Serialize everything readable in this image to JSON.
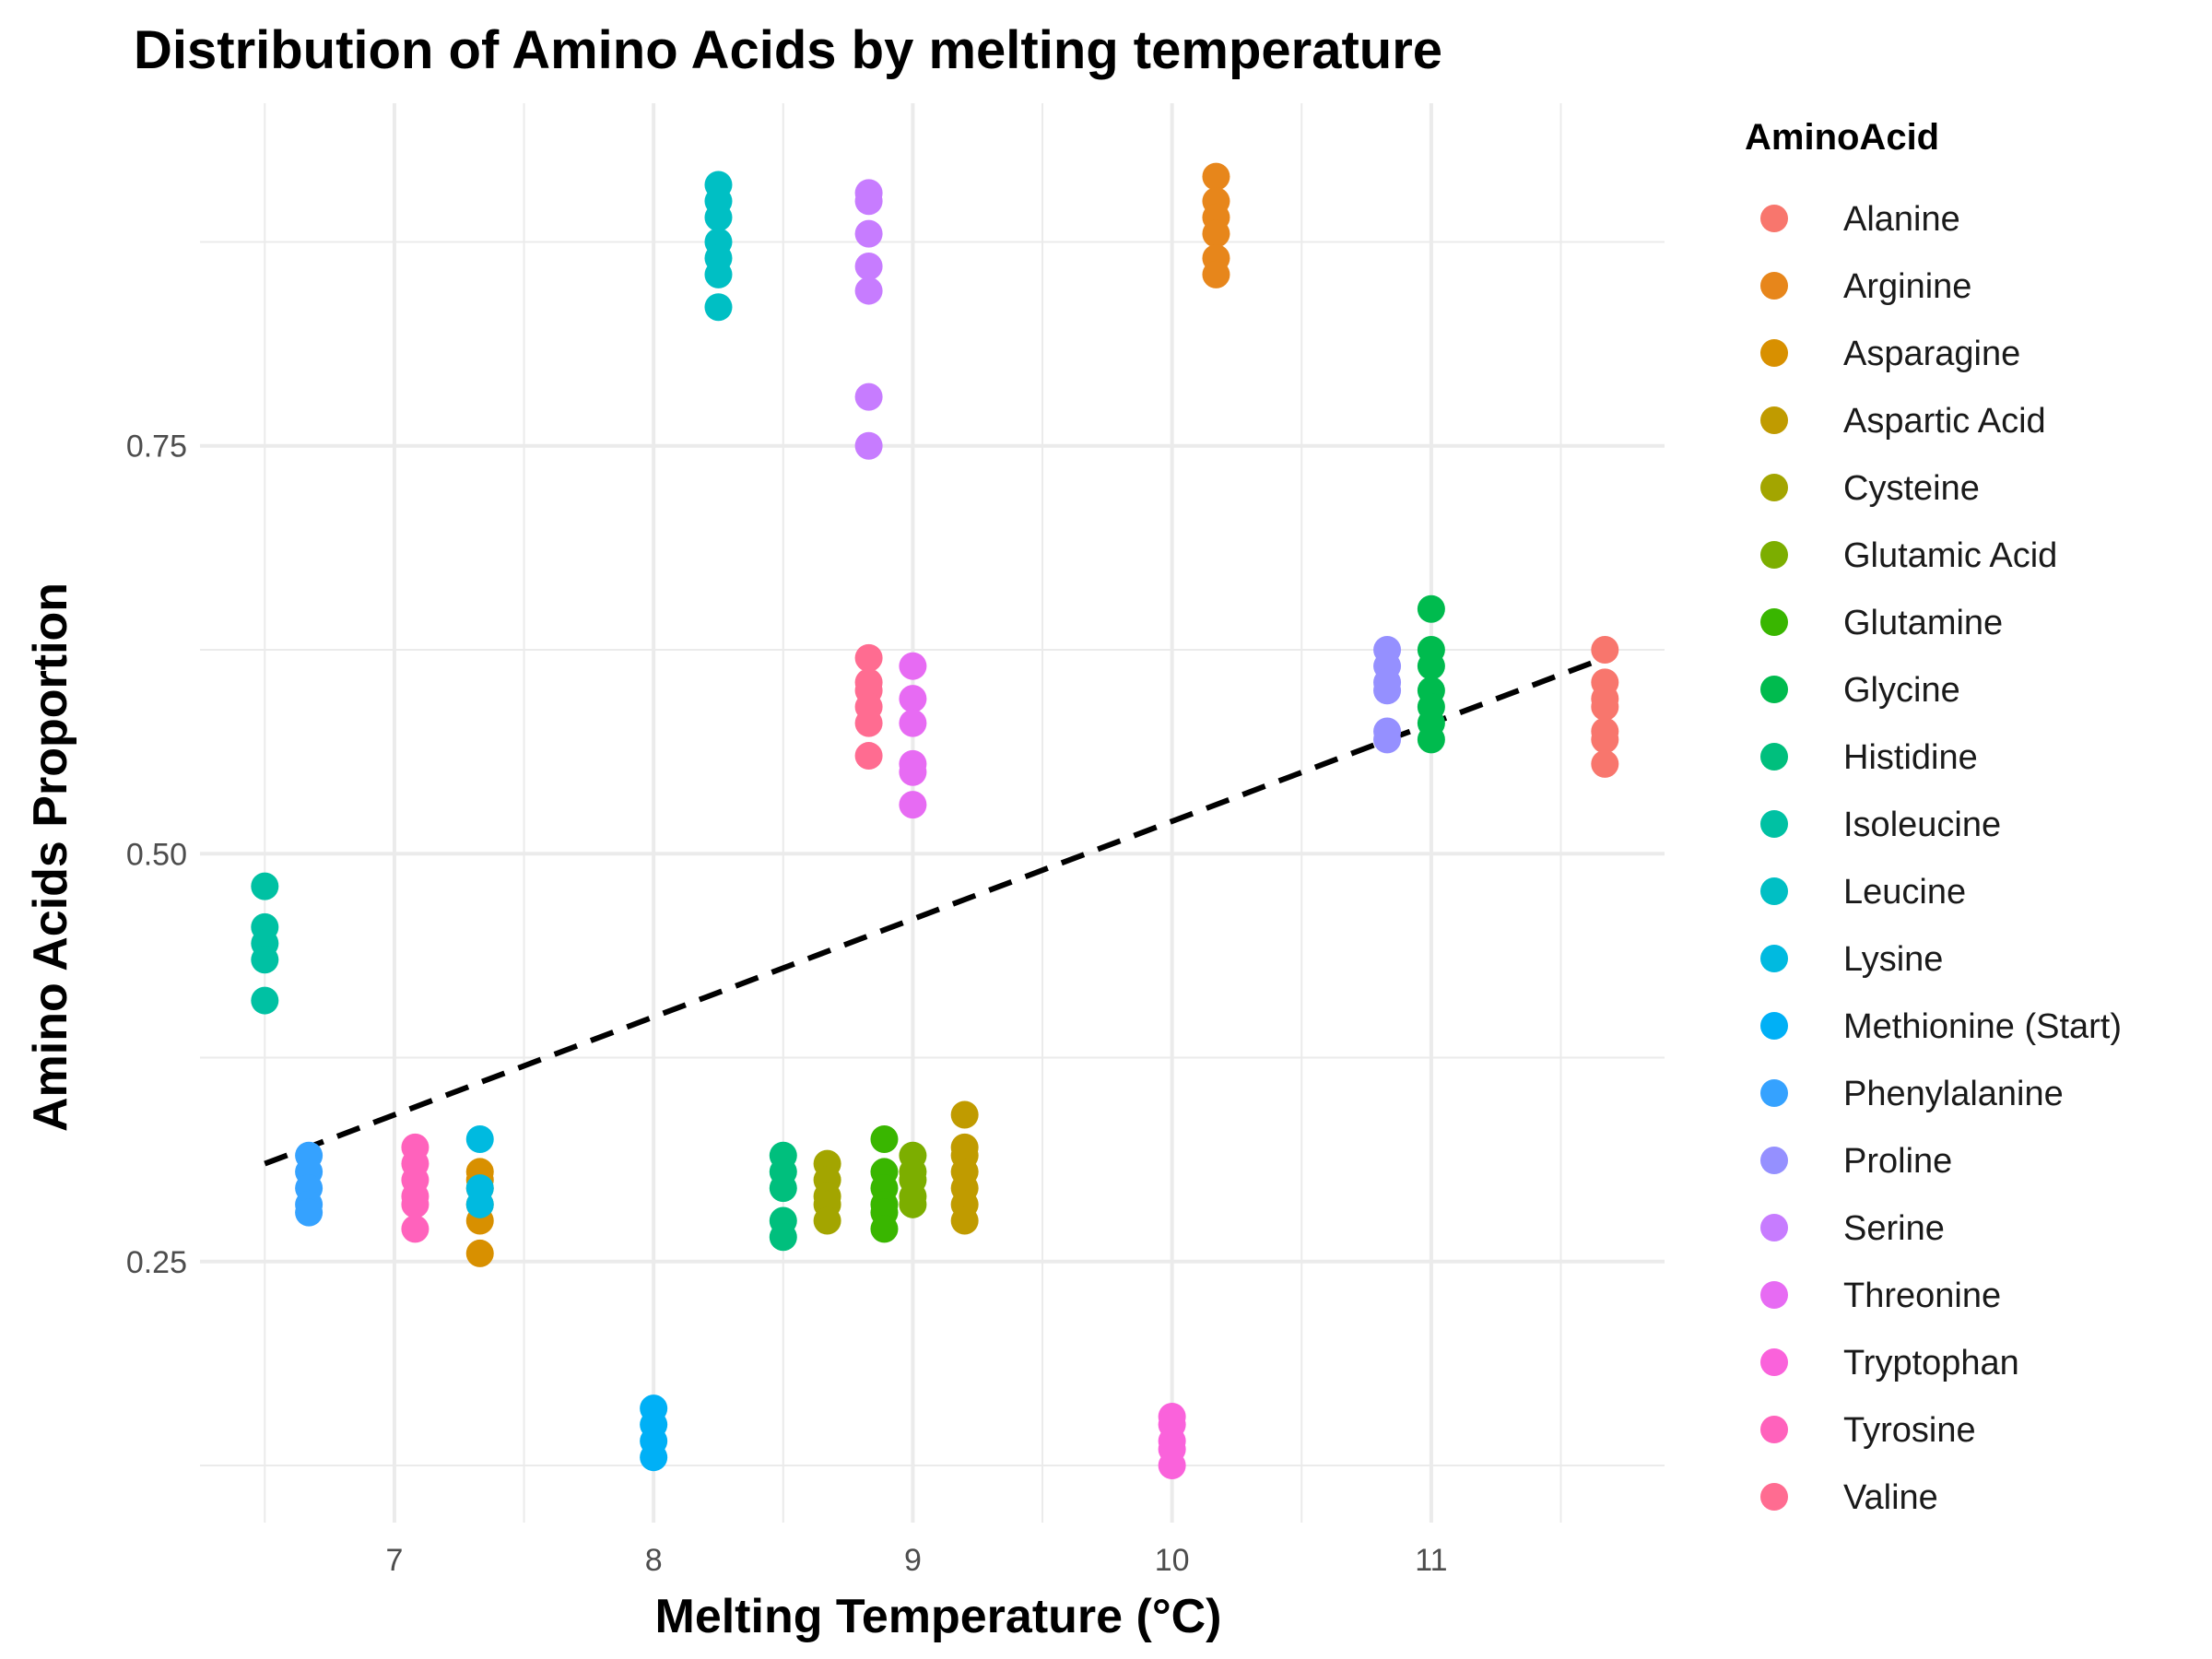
{
  "chart_data": {
    "type": "scatter",
    "title": "Distribution of Amino Acids by melting temperature",
    "xlabel": "Melting Temperature (°C)",
    "ylabel": "Amino Acids Proportion",
    "xlim": [
      6.25,
      11.9
    ],
    "ylim": [
      0.09,
      0.96
    ],
    "x_ticks": [
      7,
      8,
      9,
      10,
      11
    ],
    "x_tick_labels": [
      "7",
      "8",
      "9",
      "10",
      "11"
    ],
    "y_ticks": [
      0.25,
      0.5,
      0.75
    ],
    "y_tick_labels": [
      "0.25",
      "0.50",
      "0.75"
    ],
    "grid": true,
    "legend": {
      "title": "AminoAcid",
      "position": "right"
    },
    "trend_line": {
      "style": "dashed",
      "color": "#000000",
      "x": [
        6.5,
        11.67
      ],
      "y": [
        0.31,
        0.62
      ]
    },
    "series": [
      {
        "name": "Alanine",
        "color": "#F8766D",
        "x": 11.67,
        "y": [
          0.625,
          0.605,
          0.595,
          0.59,
          0.575,
          0.57,
          0.555
        ]
      },
      {
        "name": "Arginine",
        "color": "#E7861B",
        "x": 10.17,
        "y": [
          0.915,
          0.9,
          0.89,
          0.88,
          0.865,
          0.855
        ]
      },
      {
        "name": "Asparagine",
        "color": "#D89000",
        "x": 7.33,
        "y": [
          0.305,
          0.3,
          0.295,
          0.285,
          0.275,
          0.255
        ]
      },
      {
        "name": "Aspartic Acid",
        "color": "#C09B00",
        "x": 9.2,
        "y": [
          0.34,
          0.32,
          0.315,
          0.305,
          0.295,
          0.285,
          0.275
        ]
      },
      {
        "name": "Cysteine",
        "color": "#A3A500",
        "x": 8.67,
        "y": [
          0.31,
          0.3,
          0.29,
          0.285,
          0.275
        ]
      },
      {
        "name": "Glutamic Acid",
        "color": "#7CAE00",
        "x": 9.0,
        "y": [
          0.315,
          0.305,
          0.3,
          0.29,
          0.285
        ]
      },
      {
        "name": "Glutamine",
        "color": "#39B600",
        "x": 8.89,
        "y": [
          0.325,
          0.305,
          0.295,
          0.285,
          0.28,
          0.27
        ]
      },
      {
        "name": "Glycine",
        "color": "#00BB4E",
        "x": 11.0,
        "y": [
          0.65,
          0.625,
          0.615,
          0.6,
          0.59,
          0.58,
          0.57
        ]
      },
      {
        "name": "Histidine",
        "color": "#00BF7D",
        "x": 8.5,
        "y": [
          0.315,
          0.305,
          0.295,
          0.275,
          0.265
        ]
      },
      {
        "name": "Isoleucine",
        "color": "#00C1A3",
        "x": 6.5,
        "y": [
          0.48,
          0.455,
          0.445,
          0.435,
          0.41
        ]
      },
      {
        "name": "Leucine",
        "color": "#00BFC4",
        "x": 8.25,
        "y": [
          0.91,
          0.9,
          0.89,
          0.875,
          0.865,
          0.855,
          0.835
        ]
      },
      {
        "name": "Lysine",
        "color": "#00BAE0",
        "x": 7.33,
        "y": [
          0.325,
          0.295,
          0.285
        ]
      },
      {
        "name": "Methionine (Start)",
        "color": "#00B0F6",
        "x": 8.0,
        "y": [
          0.16,
          0.15,
          0.14,
          0.13
        ]
      },
      {
        "name": "Phenylalanine",
        "color": "#35A2FF",
        "x": 6.67,
        "y": [
          0.315,
          0.305,
          0.295,
          0.285,
          0.28
        ]
      },
      {
        "name": "Proline",
        "color": "#9590FF",
        "x": 10.83,
        "y": [
          0.625,
          0.615,
          0.605,
          0.6,
          0.575,
          0.57
        ]
      },
      {
        "name": "Serine",
        "color": "#C77CFF",
        "x": 8.83,
        "y": [
          0.905,
          0.9,
          0.88,
          0.86,
          0.845,
          0.78,
          0.75
        ]
      },
      {
        "name": "Threonine",
        "color": "#E76BF3",
        "x": 9.0,
        "y": [
          0.615,
          0.595,
          0.58,
          0.555,
          0.55,
          0.53
        ]
      },
      {
        "name": "Tryptophan",
        "color": "#FA62DB",
        "x": 10.0,
        "y": [
          0.155,
          0.15,
          0.14,
          0.135,
          0.125
        ]
      },
      {
        "name": "Tyrosine",
        "color": "#FF62BC",
        "x": 7.08,
        "y": [
          0.32,
          0.31,
          0.3,
          0.29,
          0.285,
          0.27
        ]
      },
      {
        "name": "Valine",
        "color": "#FF6C91",
        "x": 8.83,
        "y": [
          0.62,
          0.605,
          0.6,
          0.59,
          0.58,
          0.56
        ]
      }
    ]
  }
}
